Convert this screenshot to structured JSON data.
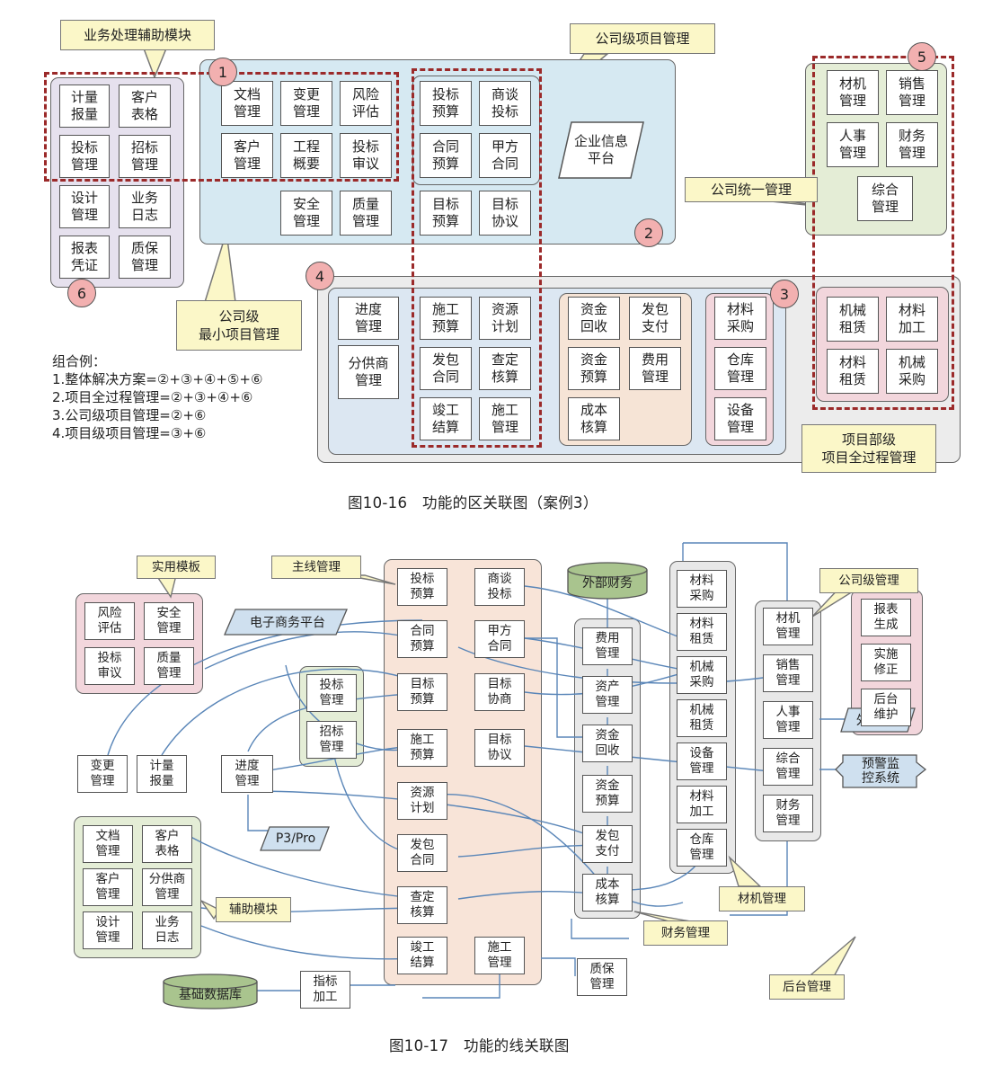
{
  "fig1": {
    "caption": "图10-16　功能的区关联图（案例3）",
    "circles": [
      "1",
      "2",
      "3",
      "4",
      "5",
      "6"
    ],
    "callouts": {
      "assist": "业务处理辅助模块",
      "company_project": "公司级项目管理",
      "unified": "公司统一管理",
      "min_project": "公司级\n最小项目管理",
      "dept": "项目部级\n项目全过程管理"
    },
    "platform": "企业信息\n平台",
    "group6": [
      "计量\n报量",
      "客户\n表格",
      "投标\n管理",
      "招标\n管理",
      "设计\n管理",
      "业务\n日志",
      "报表\n凭证",
      "质保\n管理"
    ],
    "group1": [
      "文档\n管理",
      "变更\n管理",
      "风险\n评估",
      "客户\n管理",
      "工程\n概要",
      "投标\n审议",
      "安全\n管理",
      "质量\n管理"
    ],
    "group2": [
      "投标\n预算",
      "商谈\n投标",
      "合同\n预算",
      "甲方\n合同",
      "目标\n预算",
      "目标\n协议"
    ],
    "group4_left": [
      "进度\n管理",
      "分供商\n管理"
    ],
    "group4_mid": [
      "施工\n预算",
      "资源\n计划",
      "发包\n合同",
      "查定\n核算",
      "竣工\n结算",
      "施工\n管理"
    ],
    "group4_fin": [
      "资金\n回收",
      "发包\n支付",
      "资金\n预算",
      "费用\n管理",
      "成本\n核算"
    ],
    "group3": [
      "材料\n采购",
      "仓库\n管理",
      "设备\n管理"
    ],
    "group5": [
      "材机\n管理",
      "销售\n管理",
      "人事\n管理",
      "财务\n管理",
      "综合\n管理"
    ],
    "group_dept": [
      "机械\n租赁",
      "材料\n加工",
      "材料\n租赁",
      "机械\n采购"
    ],
    "combo_title": "组合例：",
    "combo_lines": [
      "1.整体解决方案=②+③+④+⑤+⑥",
      "2.项目全过程管理=②+③+④+⑥",
      "3.公司级项目管理=②+⑥",
      "4.项目级项目管理=③+⑥"
    ]
  },
  "fig2": {
    "caption": "图10-17　功能的线关联图",
    "callouts": {
      "template": "实用模板",
      "mainline": "主线管理",
      "assist": "辅助模块",
      "company": "公司级管理",
      "material": "材机管理",
      "finance": "财务管理",
      "backend": "后台管理"
    },
    "platforms": {
      "ecommerce": "电子商务平台",
      "p3": "P3/Pro",
      "ext_hr": "外部HR",
      "warning": "预警监\n控系统"
    },
    "databases": {
      "ext_finance": "外部财务",
      "base_db": "基础数据库"
    },
    "template": [
      "风险\n评估",
      "安全\n管理",
      "投标\n审议",
      "质量\n管理"
    ],
    "bid_group": [
      "投标\n管理",
      "招标\n管理"
    ],
    "standalone": [
      "变更\n管理",
      "计量\n报量",
      "进度\n管理",
      "指标\n加工",
      "质保\n管理"
    ],
    "assist": [
      "文档\n管理",
      "客户\n表格",
      "客户\n管理",
      "分供商\n管理",
      "设计\n管理",
      "业务\n日志"
    ],
    "main_left": [
      "投标\n预算",
      "合同\n预算",
      "目标\n预算",
      "施工\n预算",
      "资源\n计划",
      "发包\n合同",
      "查定\n核算",
      "竣工\n结算"
    ],
    "main_right": [
      "商谈\n投标",
      "甲方\n合同",
      "目标\n协商",
      "目标\n协议",
      "施工\n管理"
    ],
    "finance": [
      "费用\n管理",
      "资产\n管理",
      "资金\n回收",
      "资金\n预算",
      "发包\n支付",
      "成本\n核算"
    ],
    "material": [
      "材料\n采购",
      "材料\n租赁",
      "机械\n采购",
      "机械\n租赁",
      "设备\n管理",
      "材料\n加工",
      "仓库\n管理"
    ],
    "company": [
      "材机\n管理",
      "销售\n管理",
      "人事\n管理",
      "综合\n管理",
      "财务\n管理"
    ],
    "backend": [
      "报表\n生成",
      "实施\n修正",
      "后台\n维护"
    ]
  }
}
